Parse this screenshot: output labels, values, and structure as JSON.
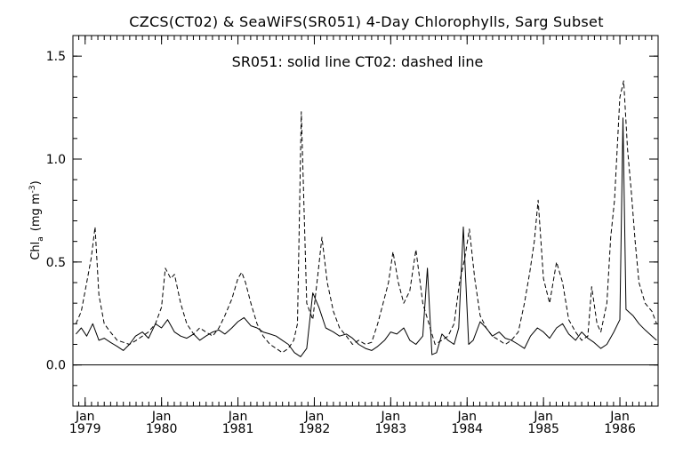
{
  "chart_data": {
    "type": "line",
    "title": "CZCS(CT02) & SeaWiFS(SR051) 4-Day Chlorophylls, Sarg Subset",
    "legend_text": "SR051: solid line    CT02: dashed line",
    "ylabel": "Chl",
    "ylabel_subscript": "a",
    "ylabel_units": "(mg m",
    "ylabel_units_sup": "-3",
    "ylabel_units_close": ")",
    "x_units": "years",
    "xlim": [
      1978.84,
      1986.5
    ],
    "ylim": [
      -0.2,
      1.6
    ],
    "yticks": [
      {
        "value": 0.0,
        "label": "0.0"
      },
      {
        "value": 0.5,
        "label": "0.5"
      },
      {
        "value": 1.0,
        "label": "1.0"
      },
      {
        "value": 1.5,
        "label": "1.5"
      }
    ],
    "xticks": [
      {
        "value": 1979.0,
        "month": "Jan",
        "year": "1979"
      },
      {
        "value": 1980.0,
        "month": "Jan",
        "year": "1980"
      },
      {
        "value": 1981.0,
        "month": "Jan",
        "year": "1981"
      },
      {
        "value": 1982.0,
        "month": "Jan",
        "year": "1982"
      },
      {
        "value": 1983.0,
        "month": "Jan",
        "year": "1983"
      },
      {
        "value": 1984.0,
        "month": "Jan",
        "year": "1984"
      },
      {
        "value": 1985.0,
        "month": "Jan",
        "year": "1985"
      },
      {
        "value": 1986.0,
        "month": "Jan",
        "year": "1986"
      }
    ],
    "reference_line": 0.0,
    "grid": false,
    "legend_placement": "top-center",
    "series": [
      {
        "name": "SR051",
        "style": "solid",
        "color": "#000000",
        "x": [
          1978.88,
          1978.95,
          1979.02,
          1979.1,
          1979.18,
          1979.25,
          1979.33,
          1979.42,
          1979.5,
          1979.58,
          1979.66,
          1979.75,
          1979.83,
          1979.92,
          1980.0,
          1980.08,
          1980.17,
          1980.25,
          1980.33,
          1980.42,
          1980.5,
          1980.58,
          1980.67,
          1980.75,
          1980.83,
          1980.92,
          1981.0,
          1981.08,
          1981.17,
          1981.25,
          1981.33,
          1981.42,
          1981.5,
          1981.58,
          1981.66,
          1981.74,
          1981.82,
          1981.9,
          1981.98,
          1982.06,
          1982.15,
          1982.25,
          1982.33,
          1982.42,
          1982.5,
          1982.58,
          1982.67,
          1982.75,
          1982.83,
          1982.92,
          1983.0,
          1983.08,
          1983.17,
          1983.25,
          1983.33,
          1983.42,
          1983.48,
          1983.54,
          1983.6,
          1983.67,
          1983.75,
          1983.83,
          1983.89,
          1983.95,
          1984.02,
          1984.08,
          1984.17,
          1984.25,
          1984.33,
          1984.42,
          1984.5,
          1984.58,
          1984.67,
          1984.75,
          1984.83,
          1984.92,
          1985.0,
          1985.08,
          1985.17,
          1985.25,
          1985.33,
          1985.42,
          1985.5,
          1985.58,
          1985.66,
          1985.75,
          1985.83,
          1985.92,
          1986.0,
          1986.04,
          1986.08,
          1986.17,
          1986.25,
          1986.33,
          1986.42,
          1986.48
        ],
        "y": [
          0.15,
          0.18,
          0.14,
          0.2,
          0.12,
          0.13,
          0.11,
          0.09,
          0.07,
          0.1,
          0.14,
          0.16,
          0.13,
          0.2,
          0.18,
          0.22,
          0.16,
          0.14,
          0.13,
          0.15,
          0.12,
          0.14,
          0.16,
          0.17,
          0.15,
          0.18,
          0.21,
          0.23,
          0.19,
          0.18,
          0.16,
          0.15,
          0.14,
          0.12,
          0.1,
          0.06,
          0.04,
          0.08,
          0.35,
          0.28,
          0.18,
          0.16,
          0.14,
          0.15,
          0.13,
          0.1,
          0.08,
          0.07,
          0.09,
          0.12,
          0.16,
          0.15,
          0.18,
          0.12,
          0.1,
          0.14,
          0.47,
          0.05,
          0.06,
          0.15,
          0.12,
          0.1,
          0.18,
          0.67,
          0.1,
          0.12,
          0.21,
          0.18,
          0.14,
          0.16,
          0.13,
          0.12,
          0.1,
          0.08,
          0.14,
          0.18,
          0.16,
          0.13,
          0.18,
          0.2,
          0.15,
          0.12,
          0.16,
          0.13,
          0.11,
          0.08,
          0.1,
          0.16,
          0.22,
          1.2,
          0.27,
          0.24,
          0.2,
          0.17,
          0.14,
          0.12
        ]
      },
      {
        "name": "CT02",
        "style": "dashed",
        "color": "#000000",
        "x": [
          1978.88,
          1978.95,
          1979.02,
          1979.08,
          1979.13,
          1979.18,
          1979.25,
          1979.33,
          1979.42,
          1979.5,
          1979.58,
          1979.67,
          1979.75,
          1979.83,
          1979.92,
          1980.0,
          1980.05,
          1980.12,
          1980.17,
          1980.25,
          1980.33,
          1980.42,
          1980.5,
          1980.58,
          1980.67,
          1980.75,
          1980.83,
          1980.92,
          1981.0,
          1981.05,
          1981.1,
          1981.17,
          1981.25,
          1981.33,
          1981.42,
          1981.5,
          1981.58,
          1981.66,
          1981.73,
          1981.78,
          1981.83,
          1981.9,
          1981.98,
          1982.05,
          1982.1,
          1982.17,
          1982.25,
          1982.33,
          1982.42,
          1982.5,
          1982.58,
          1982.67,
          1982.75,
          1982.83,
          1982.9,
          1982.97,
          1983.03,
          1983.1,
          1983.17,
          1983.25,
          1983.33,
          1983.42,
          1983.5,
          1983.58,
          1983.67,
          1983.75,
          1983.83,
          1983.9,
          1983.97,
          1984.03,
          1984.1,
          1984.17,
          1984.25,
          1984.33,
          1984.42,
          1984.5,
          1984.58,
          1984.67,
          1984.75,
          1984.82,
          1984.88,
          1984.93,
          1985.0,
          1985.08,
          1985.17,
          1985.25,
          1985.33,
          1985.42,
          1985.5,
          1985.58,
          1985.63,
          1985.7,
          1985.75,
          1985.83,
          1985.88,
          1985.93,
          1986.0,
          1986.05,
          1986.1,
          1986.15,
          1986.2,
          1986.25,
          1986.33,
          1986.42,
          1986.48
        ],
        "y": [
          0.2,
          0.26,
          0.4,
          0.52,
          0.67,
          0.34,
          0.2,
          0.16,
          0.12,
          0.11,
          0.1,
          0.12,
          0.14,
          0.16,
          0.2,
          0.28,
          0.47,
          0.42,
          0.44,
          0.3,
          0.2,
          0.15,
          0.18,
          0.16,
          0.14,
          0.18,
          0.24,
          0.32,
          0.42,
          0.45,
          0.4,
          0.3,
          0.2,
          0.14,
          0.1,
          0.08,
          0.06,
          0.08,
          0.12,
          0.2,
          1.23,
          0.3,
          0.22,
          0.45,
          0.62,
          0.4,
          0.26,
          0.18,
          0.14,
          0.1,
          0.12,
          0.1,
          0.11,
          0.2,
          0.3,
          0.4,
          0.55,
          0.4,
          0.3,
          0.36,
          0.56,
          0.3,
          0.2,
          0.1,
          0.12,
          0.14,
          0.2,
          0.4,
          0.52,
          0.66,
          0.42,
          0.24,
          0.18,
          0.14,
          0.12,
          0.1,
          0.12,
          0.16,
          0.3,
          0.45,
          0.6,
          0.8,
          0.42,
          0.3,
          0.5,
          0.4,
          0.22,
          0.16,
          0.12,
          0.14,
          0.38,
          0.2,
          0.16,
          0.3,
          0.62,
          0.8,
          1.3,
          1.38,
          1.05,
          0.84,
          0.6,
          0.4,
          0.3,
          0.26,
          0.2
        ]
      }
    ]
  }
}
